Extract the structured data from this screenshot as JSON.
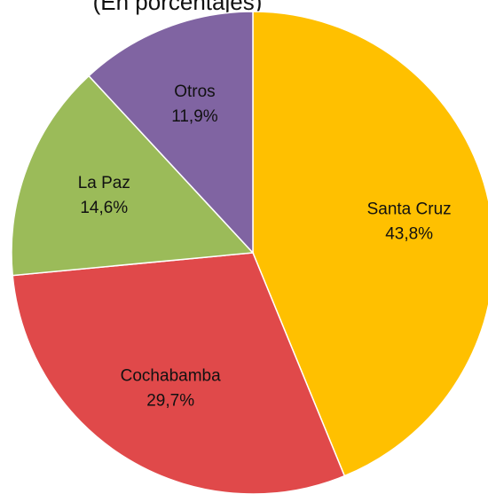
{
  "chart_data": {
    "type": "pie",
    "subtitle": "(En porcentajes)",
    "categories": [
      "Santa Cruz",
      "Cochabamba",
      "La Paz",
      "Otros"
    ],
    "values": [
      43.8,
      29.7,
      14.6,
      11.9
    ],
    "value_labels": [
      "43,8%",
      "29,7%",
      "14,6%",
      "11,9%"
    ],
    "colors": [
      "#ffc000",
      "#e0494a",
      "#9bbb59",
      "#8064a2"
    ]
  }
}
